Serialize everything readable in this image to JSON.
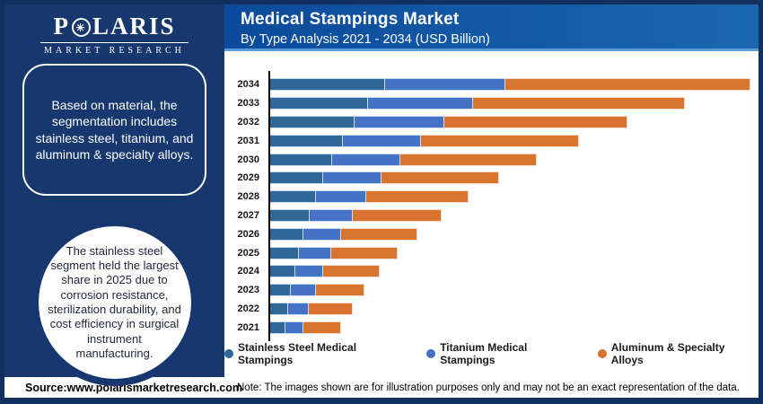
{
  "brand": {
    "name_prefix": "P",
    "name_suffix": "LARIS",
    "logo_star": "✳",
    "tagline": "MARKET RESEARCH"
  },
  "header": {
    "title": "Medical Stampings Market",
    "subtitle": "By Type Analysis 2021 - 2034 (USD Billion)"
  },
  "sidebar": {
    "callout_box": "Based on material, the segmentation includes stainless steel, titanium, and aluminum & specialty alloys.",
    "callout_circle": "The stainless steel segment held the largest share in 2025 due to corrosion resistance, sterilization durability, and cost efficiency in surgical instrument manufacturing."
  },
  "footer": {
    "source": "Source:www.polarismarketresearch.com",
    "note": "Note: The images shown are for illustration purposes only and may not be an exact representation of the data."
  },
  "colors": {
    "frame_navy": "#12305F",
    "sidebar_navy": "#16386E",
    "header_blue_left": "#0B4A9C",
    "header_blue_right": "#1B67AE",
    "header_underline": "#5B9BD5",
    "stainless_steel": "#2E6898",
    "titanium": "#4472C4",
    "aluminum": "#D9742E"
  },
  "chart_data": {
    "type": "bar",
    "orientation": "horizontal",
    "stacked": true,
    "title": "Medical Stampings Market",
    "subtitle": "By Type Analysis 2021 - 2034 (USD Billion)",
    "units": "USD Billion (x-axis unlabeled; values are relative estimates from bar lengths, 2034 total = 100)",
    "grid": false,
    "legend_position": "bottom",
    "xlim": [
      0,
      100
    ],
    "categories": [
      "2034",
      "2033",
      "2032",
      "2031",
      "2030",
      "2029",
      "2028",
      "2027",
      "2026",
      "2025",
      "2024",
      "2023",
      "2022",
      "2021"
    ],
    "series": [
      {
        "name": "Stainless Steel Medical Stampings",
        "color": "#2E6898",
        "values": [
          24.1,
          20.6,
          17.8,
          15.4,
          13.3,
          11.4,
          9.8,
          8.6,
          7.3,
          6.3,
          5.6,
          4.7,
          4.0,
          3.6
        ]
      },
      {
        "name": "Titanium Medical Stampings",
        "color": "#4472C4",
        "values": [
          25.0,
          21.9,
          18.7,
          16.3,
          14.0,
          12.1,
          10.5,
          8.9,
          7.7,
          6.8,
          5.8,
          5.1,
          4.4,
          3.7
        ]
      },
      {
        "name": "Aluminum & Specialty Alloys",
        "color": "#D9742E",
        "values": [
          50.8,
          43.8,
          37.9,
          32.7,
          28.3,
          24.4,
          21.2,
          18.4,
          15.9,
          13.7,
          11.7,
          10.2,
          9.0,
          7.7
        ]
      }
    ]
  }
}
